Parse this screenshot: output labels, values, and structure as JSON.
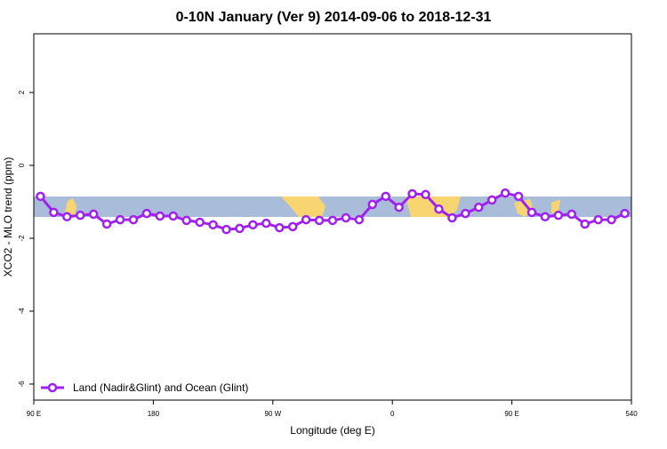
{
  "chart_data": {
    "type": "line",
    "title": "0-10N January (Ver 9)   2014-09-06 to 2018-12-31",
    "x_label": "Longitude (deg E)",
    "y_label": "XCO2 - MLO trend (ppm)",
    "x": [
      95,
      105,
      115,
      125,
      135,
      145,
      155,
      165,
      175,
      185,
      195,
      205,
      215,
      225,
      235,
      245,
      255,
      265,
      275,
      285,
      295,
      305,
      315,
      325,
      335,
      345,
      355,
      365,
      375,
      385,
      395,
      405,
      415,
      425,
      435,
      445,
      455,
      465,
      475,
      485,
      495,
      505,
      515,
      525,
      535
    ],
    "series": [
      {
        "name": "Land (Nadir&Glint) and Ocean (Glint)",
        "color": "#a020f0",
        "values": [
          -0.85,
          -1.29,
          -1.41,
          -1.37,
          -1.34,
          -1.61,
          -1.49,
          -1.49,
          -1.32,
          -1.39,
          -1.39,
          -1.51,
          -1.56,
          -1.63,
          -1.76,
          -1.73,
          -1.63,
          -1.59,
          -1.71,
          -1.68,
          -1.49,
          -1.51,
          -1.51,
          -1.44,
          -1.49,
          -1.07,
          -0.85,
          -1.15,
          -0.78,
          -0.8,
          -1.2,
          -1.44,
          -1.32,
          -1.15,
          -0.95,
          -0.76,
          -0.85,
          -1.29,
          -1.41,
          -1.37,
          -1.34,
          -1.61,
          -1.49,
          -1.49,
          -1.32
        ]
      }
    ],
    "xlim": [
      90,
      540
    ],
    "xticks": [
      {
        "value": 90,
        "label": "90 E"
      },
      180,
      {
        "value": 270,
        "label": "90 W"
      },
      {
        "value": 360,
        "label": "0"
      },
      {
        "value": 450,
        "label": "90 E"
      },
      540
    ],
    "ylim": [
      -6.44,
      3.61
    ],
    "yticks": [
      -6,
      -4,
      -2,
      0,
      2
    ],
    "legend": "bottom-left"
  }
}
